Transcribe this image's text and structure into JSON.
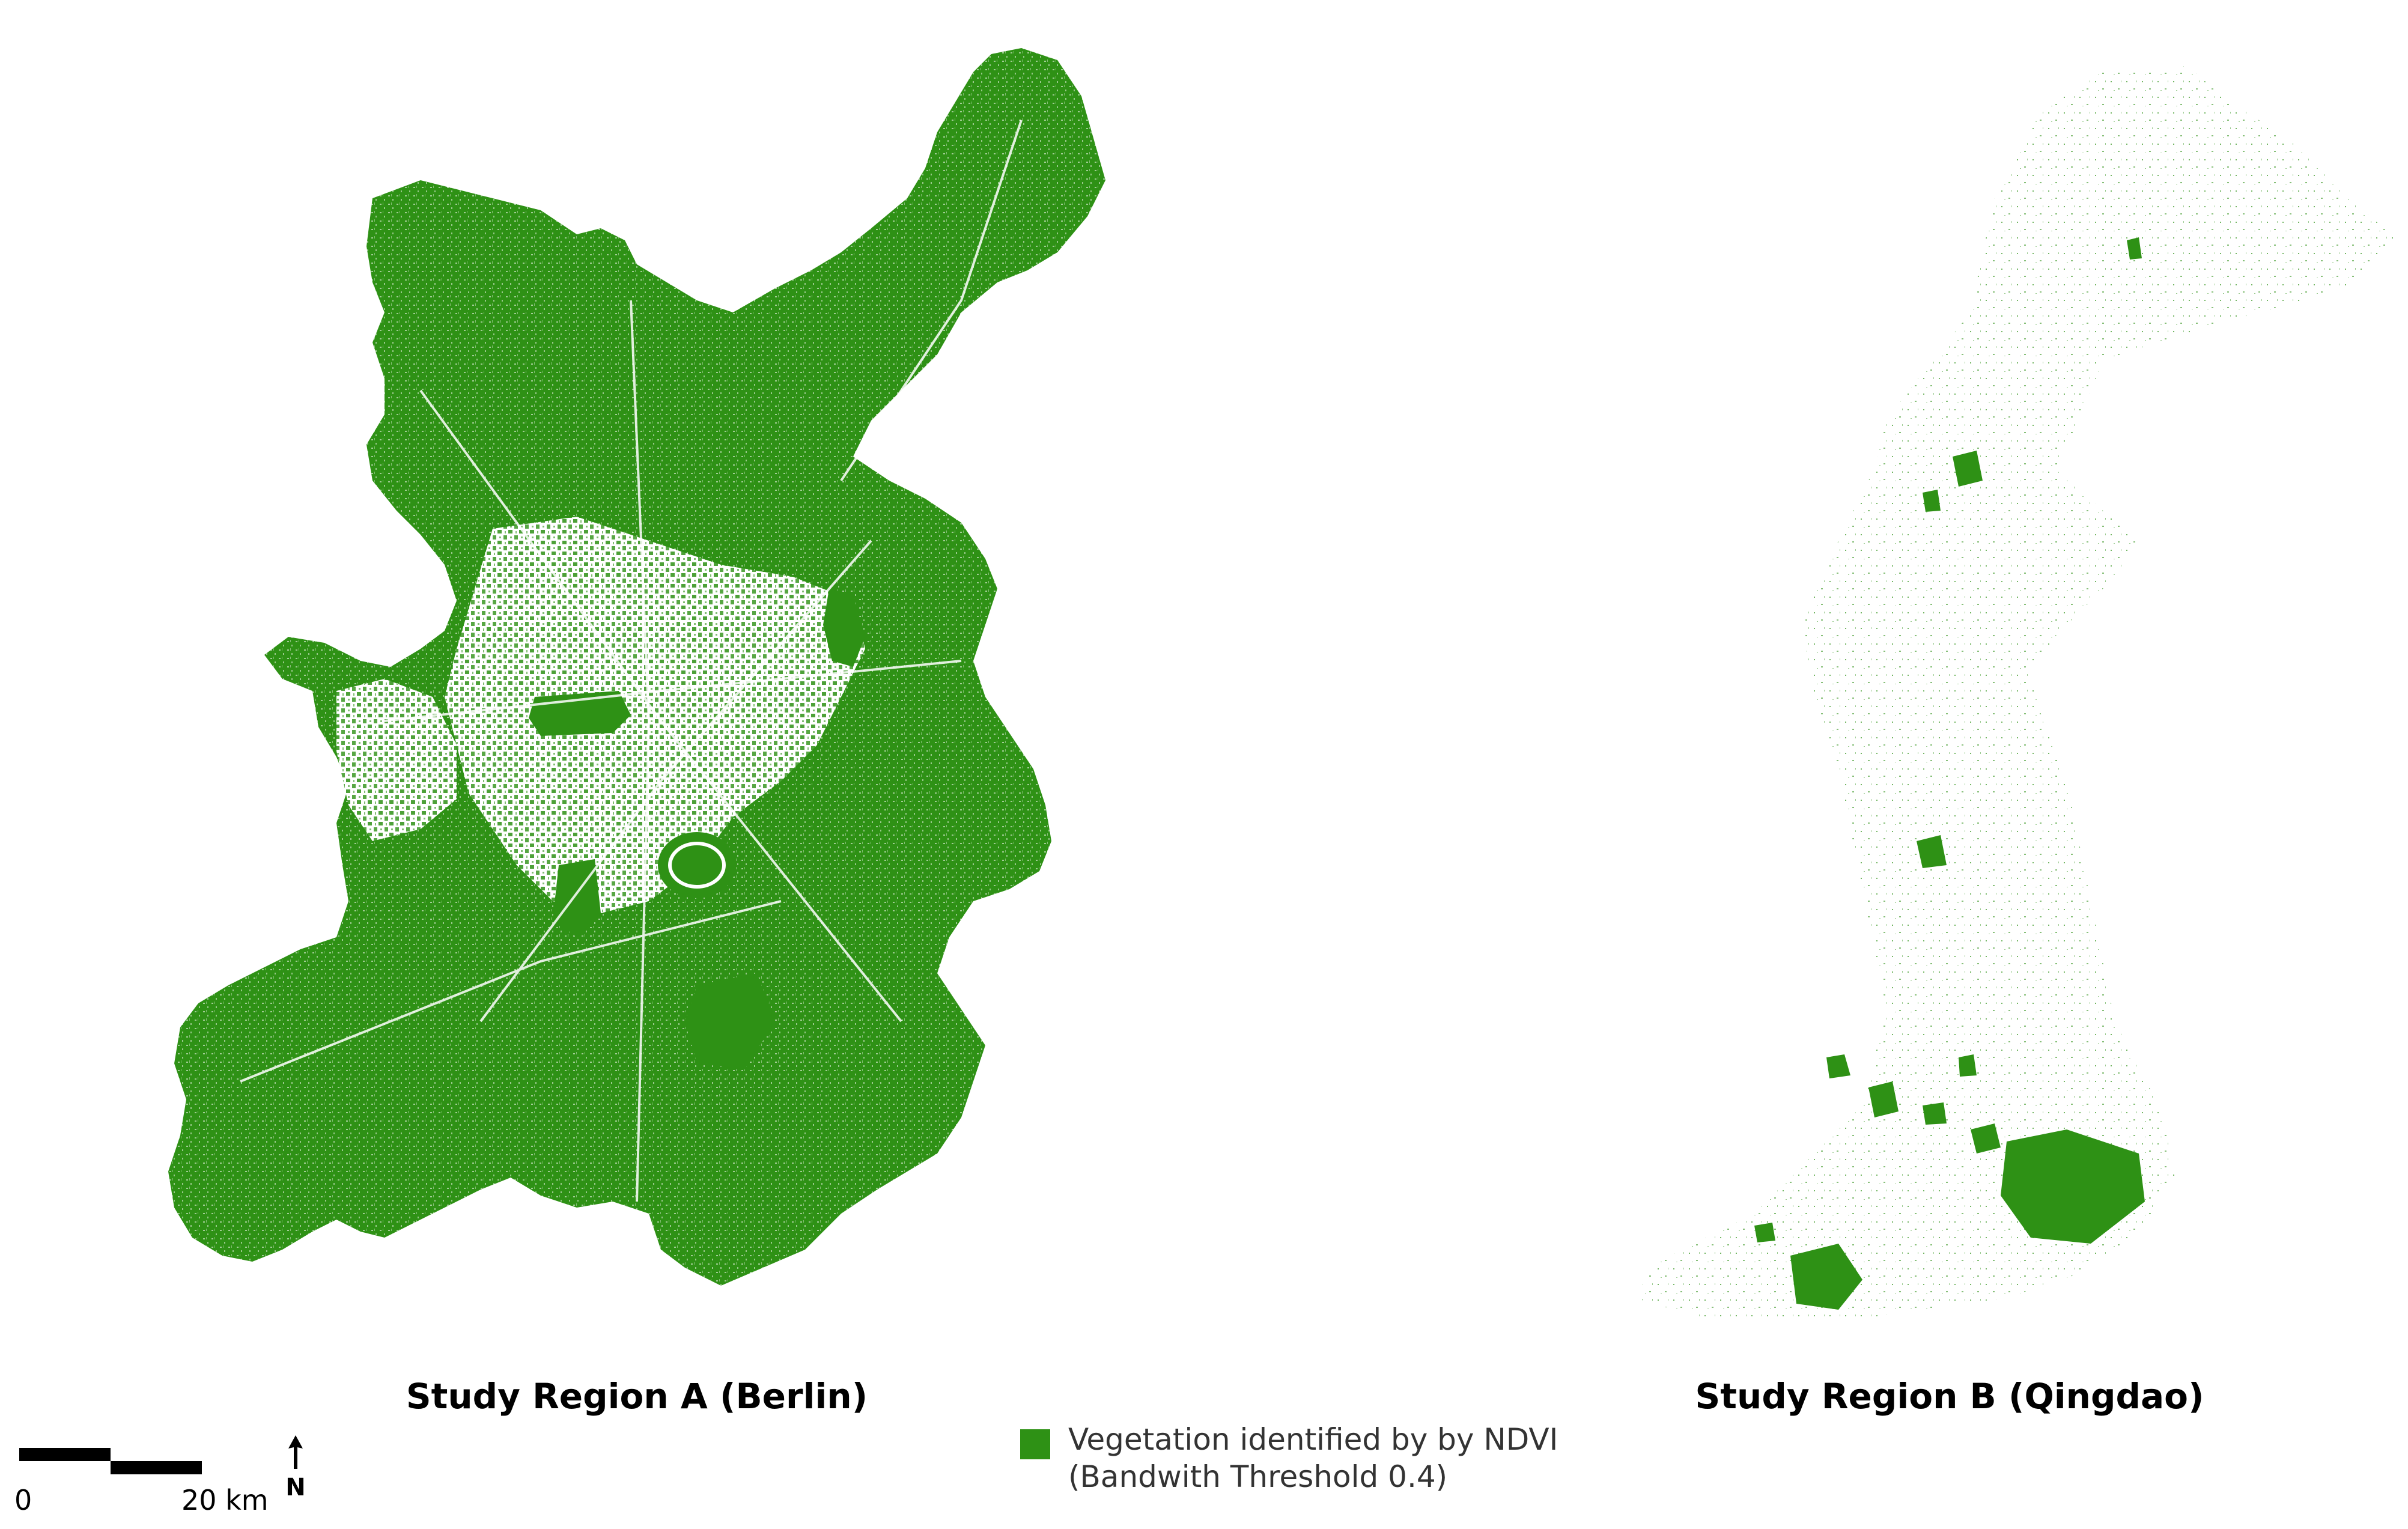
{
  "map": {
    "region_a": {
      "title": "Study Region A (Berlin)"
    },
    "region_b": {
      "title": "Study Region B (Qingdao)"
    }
  },
  "legend": {
    "line1": "Vegetation identified by by NDVI",
    "line2": "(Bandwith Threshold 0.4)",
    "color": "#2e9115",
    "icon": "legend-swatch"
  },
  "scale_bar": {
    "start_label": "0",
    "end_label": "20 km"
  },
  "north_arrow": {
    "label": "N",
    "icon": "north-arrow-icon"
  },
  "colors": {
    "vegetation": "#2e9115",
    "vegetation_light": "#3a9e1f",
    "background": "#ffffff"
  }
}
